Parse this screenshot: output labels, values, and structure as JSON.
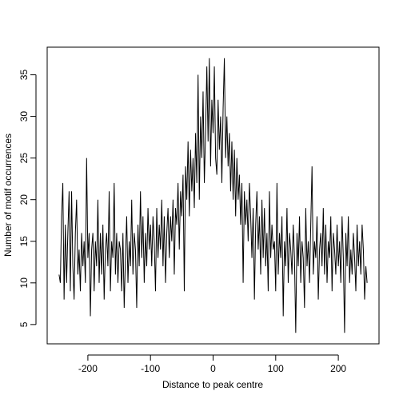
{
  "chart_data": {
    "type": "line",
    "x_label": "Distance to peak centre",
    "y_label": "Number of motif occurrences",
    "x": [
      -246,
      -244,
      -242,
      -240,
      -238,
      -236,
      -234,
      -232,
      -230,
      -228,
      -226,
      -224,
      -222,
      -220,
      -218,
      -216,
      -214,
      -212,
      -210,
      -208,
      -206,
      -204,
      -202,
      -200,
      -198,
      -196,
      -194,
      -192,
      -190,
      -188,
      -186,
      -184,
      -182,
      -180,
      -178,
      -176,
      -174,
      -172,
      -170,
      -168,
      -166,
      -164,
      -162,
      -160,
      -158,
      -156,
      -154,
      -152,
      -150,
      -148,
      -146,
      -144,
      -142,
      -140,
      -138,
      -136,
      -134,
      -132,
      -130,
      -128,
      -126,
      -124,
      -122,
      -120,
      -118,
      -116,
      -114,
      -112,
      -110,
      -108,
      -106,
      -104,
      -102,
      -100,
      -98,
      -96,
      -94,
      -92,
      -90,
      -88,
      -86,
      -84,
      -82,
      -80,
      -78,
      -76,
      -74,
      -72,
      -70,
      -68,
      -66,
      -64,
      -62,
      -60,
      -58,
      -56,
      -54,
      -52,
      -50,
      -48,
      -46,
      -44,
      -42,
      -40,
      -38,
      -36,
      -34,
      -32,
      -30,
      -28,
      -26,
      -24,
      -22,
      -20,
      -18,
      -16,
      -14,
      -12,
      -10,
      -8,
      -6,
      -4,
      -2,
      0,
      2,
      4,
      6,
      8,
      10,
      12,
      14,
      16,
      18,
      20,
      22,
      24,
      26,
      28,
      30,
      32,
      34,
      36,
      38,
      40,
      42,
      44,
      46,
      48,
      50,
      52,
      54,
      56,
      58,
      60,
      62,
      64,
      66,
      68,
      70,
      72,
      74,
      76,
      78,
      80,
      82,
      84,
      86,
      88,
      90,
      92,
      94,
      96,
      98,
      100,
      102,
      104,
      106,
      108,
      110,
      112,
      114,
      116,
      118,
      120,
      122,
      124,
      126,
      128,
      130,
      132,
      134,
      136,
      138,
      140,
      142,
      144,
      146,
      148,
      150,
      152,
      154,
      156,
      158,
      160,
      162,
      164,
      166,
      168,
      170,
      172,
      174,
      176,
      178,
      180,
      182,
      184,
      186,
      188,
      190,
      192,
      194,
      196,
      198,
      200,
      202,
      204,
      206,
      208,
      210,
      212,
      214,
      216,
      218,
      220,
      222,
      224,
      226,
      228,
      230,
      232,
      234,
      236,
      238,
      240,
      242,
      244,
      246
    ],
    "series": [
      {
        "color": "#000000",
        "values": [
          11,
          10,
          18,
          22,
          8,
          17,
          10,
          16,
          21,
          9,
          21,
          12,
          8,
          16,
          20,
          11,
          14,
          9,
          16,
          12,
          15,
          10,
          25,
          13,
          16,
          6,
          14,
          16,
          9,
          15,
          12,
          20,
          10,
          16,
          11,
          17,
          8,
          14,
          16,
          12,
          21,
          9,
          15,
          13,
          22,
          11,
          16,
          10,
          15,
          14,
          9,
          16,
          7,
          13,
          18,
          10,
          15,
          12,
          20,
          11,
          16,
          14,
          7,
          17,
          12,
          21,
          13,
          18,
          10,
          16,
          12,
          19,
          14,
          17,
          12,
          18,
          15,
          9,
          19,
          13,
          17,
          14,
          20,
          12,
          18,
          10,
          16,
          19,
          13,
          18,
          15,
          20,
          11,
          19,
          17,
          22,
          14,
          21,
          18,
          23,
          9,
          24,
          20,
          27,
          18,
          26,
          21,
          25,
          19,
          28,
          22,
          35,
          20,
          30,
          25,
          33,
          22,
          28,
          36,
          27,
          37,
          24,
          32,
          28,
          36,
          25,
          23,
          32,
          26,
          30,
          22,
          31,
          37,
          25,
          30,
          24,
          28,
          21,
          27,
          20,
          26,
          18,
          25,
          20,
          23,
          17,
          22,
          10,
          21,
          17,
          20,
          15,
          22,
          18,
          13,
          19,
          8,
          17,
          21,
          14,
          18,
          11,
          20,
          13,
          19,
          12,
          16,
          9,
          21,
          13,
          17,
          14,
          15,
          9,
          22,
          11,
          16,
          13,
          18,
          6,
          15,
          12,
          19,
          10,
          16,
          14,
          11,
          17,
          13,
          4,
          16,
          12,
          18,
          10,
          15,
          13,
          7,
          19,
          12,
          15,
          10,
          17,
          24,
          11,
          15,
          13,
          18,
          8,
          14,
          16,
          12,
          19,
          11,
          17,
          10,
          15,
          13,
          18,
          9,
          16,
          14,
          11,
          17,
          12,
          15,
          10,
          18,
          13,
          4,
          16,
          12,
          18,
          10,
          14,
          11,
          16,
          13,
          9,
          17,
          12,
          15,
          11,
          17,
          14,
          8,
          12,
          10
        ]
      }
    ],
    "xlim": [
      -265,
      265
    ],
    "ylim": [
      2.68,
      38.32
    ],
    "xticks": [
      -200,
      -100,
      0,
      100,
      200
    ],
    "yticks": [
      5,
      10,
      15,
      20,
      25,
      30,
      35
    ],
    "grid": false
  }
}
